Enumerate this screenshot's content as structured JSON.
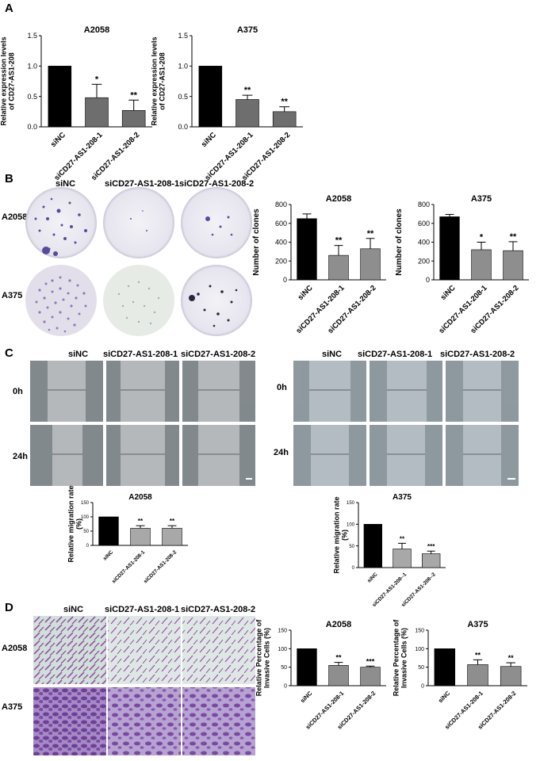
{
  "panels": {
    "a": "A",
    "b": "B",
    "c": "C",
    "d": "D"
  },
  "panel_b": {
    "columns": [
      "siNC",
      "siCD27-AS1-208-1",
      "siCD27-AS1-208-2"
    ],
    "rows": [
      "A2058",
      "A375"
    ]
  },
  "panel_c": {
    "left_columns": [
      "siNC",
      "siCD27-AS1-208-1",
      "siCD27-AS1-208-2"
    ],
    "right_columns": [
      "siNC",
      "siCD27-AS1-208-1",
      "siCD27-AS1-208-2"
    ],
    "rows": [
      "0h",
      "24h"
    ]
  },
  "panel_d": {
    "columns": [
      "siNC",
      "siCD27-AS1-208-1",
      "siCD27-AS1-208-2"
    ],
    "rows": [
      "A2058",
      "A375"
    ]
  },
  "colors": {
    "black_bar": "#000000",
    "dark_gray_bar": "#6e6e6e",
    "gray_bar": "#8e8e8e",
    "light_gray_bar": "#a8a8a8",
    "dish_purple": "#5a4a9c",
    "stain_purple": "#9b4fa8",
    "wound_gray": "#9da4a8"
  },
  "chart_data": [
    {
      "id": "A-A2058",
      "type": "bar",
      "title": "A2058",
      "ylabel": "Relative expression levels of CD27-AS1-208",
      "categories": [
        "siNC",
        "siCD27-AS1-208-1",
        "siCD27-AS1-208-2"
      ],
      "values": [
        1.0,
        0.48,
        0.27
      ],
      "errors": [
        0,
        0.22,
        0.17
      ],
      "significance": [
        "",
        "*",
        "**"
      ],
      "ylim": [
        0,
        1.5
      ],
      "yticks": [
        0.0,
        0.5,
        1.0,
        1.5
      ],
      "ytick_labels": [
        "0.0",
        "0.5",
        "1.0",
        "1.5"
      ],
      "bar_colors": [
        "#000000",
        "#6e6e6e",
        "#6e6e6e"
      ]
    },
    {
      "id": "A-A375",
      "type": "bar",
      "title": "A375",
      "ylabel": "Relative expression levels of CD27-AS1-208",
      "categories": [
        "siNC",
        "siCD27-AS1-208-1",
        "siCD27-AS1-208-2"
      ],
      "values": [
        1.0,
        0.45,
        0.25
      ],
      "errors": [
        0,
        0.07,
        0.08
      ],
      "significance": [
        "",
        "**",
        "**"
      ],
      "ylim": [
        0,
        1.5
      ],
      "yticks": [
        0.0,
        0.5,
        1.0,
        1.5
      ],
      "ytick_labels": [
        "0.0",
        "0.5",
        "1.0",
        "1.5"
      ],
      "bar_colors": [
        "#000000",
        "#6e6e6e",
        "#6e6e6e"
      ]
    },
    {
      "id": "B-A2058",
      "type": "bar",
      "title": "A2058",
      "ylabel": "Number of clones",
      "categories": [
        "siNC",
        "siCD27-AS1-208-1",
        "siCD27-AS1-208-2"
      ],
      "values": [
        650,
        260,
        330
      ],
      "errors": [
        50,
        105,
        110
      ],
      "significance": [
        "",
        "**",
        "**"
      ],
      "ylim": [
        0,
        800
      ],
      "yticks": [
        0,
        200,
        400,
        600,
        800
      ],
      "ytick_labels": [
        "0",
        "200",
        "400",
        "600",
        "800"
      ],
      "bar_colors": [
        "#000000",
        "#8e8e8e",
        "#8e8e8e"
      ]
    },
    {
      "id": "B-A375",
      "type": "bar",
      "title": "A375",
      "ylabel": "Number of clones",
      "categories": [
        "siNC",
        "siCD27-AS1-208-1",
        "siCD27-AS1-208-2"
      ],
      "values": [
        670,
        320,
        310
      ],
      "errors": [
        25,
        80,
        95
      ],
      "significance": [
        "",
        "*",
        "**"
      ],
      "ylim": [
        0,
        800
      ],
      "yticks": [
        0,
        200,
        400,
        600,
        800
      ],
      "ytick_labels": [
        "0",
        "200",
        "400",
        "600",
        "800"
      ],
      "bar_colors": [
        "#000000",
        "#8e8e8e",
        "#8e8e8e"
      ]
    },
    {
      "id": "C-A2058",
      "type": "bar",
      "title": "A2058",
      "ylabel": "Relative migration rate (%)",
      "categories": [
        "siNC",
        "siCD27-AS1-208-1",
        "siCD27-AS1-208-2"
      ],
      "values": [
        100,
        60,
        60
      ],
      "errors": [
        0,
        9,
        9
      ],
      "significance": [
        "",
        "**",
        "**"
      ],
      "ylim": [
        0,
        150
      ],
      "yticks": [
        0,
        50,
        100,
        150
      ],
      "ytick_labels": [
        "0",
        "50",
        "100",
        "150"
      ],
      "bar_colors": [
        "#000000",
        "#a8a8a8",
        "#a8a8a8"
      ]
    },
    {
      "id": "C-A375",
      "type": "bar",
      "title": "A375",
      "ylabel": "Relative migration rate (%)",
      "categories": [
        "siNC",
        "siCD27-AS1-208--1",
        "siCD27-AS1-208--2"
      ],
      "values": [
        100,
        43,
        32
      ],
      "errors": [
        0,
        13,
        6
      ],
      "significance": [
        "",
        "**",
        "***"
      ],
      "ylim": [
        0,
        150
      ],
      "yticks": [
        0,
        50,
        100,
        150
      ],
      "ytick_labels": [
        "0",
        "50",
        "100",
        "150"
      ],
      "bar_colors": [
        "#000000",
        "#a8a8a8",
        "#a8a8a8"
      ]
    },
    {
      "id": "D-A2058",
      "type": "bar",
      "title": "A2058",
      "ylabel": "Relative Percentage of Invasive Cells (%)",
      "categories": [
        "siNC",
        "siCD27-AS1-208-1",
        "siCD27-AS1-208-2"
      ],
      "values": [
        100,
        55,
        50
      ],
      "errors": [
        0,
        8,
        3
      ],
      "significance": [
        "",
        "**",
        "***"
      ],
      "ylim": [
        0,
        150
      ],
      "yticks": [
        0,
        50,
        100,
        150
      ],
      "ytick_labels": [
        "0",
        "50",
        "100",
        "150"
      ],
      "bar_colors": [
        "#000000",
        "#8e8e8e",
        "#8e8e8e"
      ]
    },
    {
      "id": "D-A375",
      "type": "bar",
      "title": "A375",
      "ylabel": "Relative Percentage of Invasive Cells (%)",
      "categories": [
        "siNC",
        "siCD27-AS1-208-1",
        "siCD27-AS1-208-2"
      ],
      "values": [
        100,
        57,
        52
      ],
      "errors": [
        0,
        13,
        10
      ],
      "significance": [
        "",
        "**",
        "**"
      ],
      "ylim": [
        0,
        150
      ],
      "yticks": [
        0,
        50,
        100,
        150
      ],
      "ytick_labels": [
        "0",
        "50",
        "100",
        "150"
      ],
      "bar_colors": [
        "#000000",
        "#8e8e8e",
        "#8e8e8e"
      ]
    }
  ]
}
